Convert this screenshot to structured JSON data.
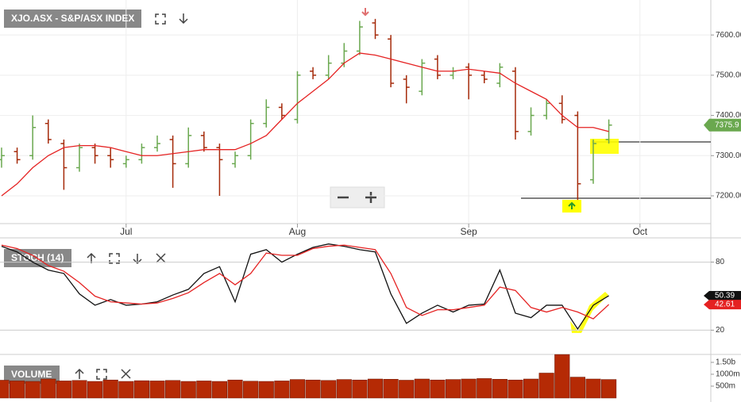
{
  "chart_data": [
    {
      "type": "ohlc",
      "title": "XJO.ASX - S&P/ASX INDEX",
      "x": [
        0,
        2,
        4,
        6,
        8,
        10,
        12,
        14,
        16,
        18,
        20,
        22,
        24,
        26,
        28,
        30,
        32,
        34,
        36,
        38,
        40,
        42,
        44,
        46,
        48,
        50,
        52,
        54,
        56,
        58,
        60,
        62,
        64,
        66,
        68,
        70,
        72,
        74,
        76,
        78
      ],
      "open": [
        7290,
        7310,
        7300,
        7380,
        7330,
        7270,
        7320,
        7300,
        7280,
        7290,
        7320,
        7340,
        7280,
        7350,
        7320,
        7280,
        7300,
        7380,
        7420,
        7390,
        7510,
        7500,
        7530,
        7560,
        7630,
        7590,
        7490,
        7460,
        7540,
        7500,
        7520,
        7500,
        7480,
        7510,
        7360,
        7400,
        7430,
        7400,
        7240,
        7340
      ],
      "high": [
        7320,
        7320,
        7400,
        7390,
        7340,
        7330,
        7330,
        7320,
        7300,
        7330,
        7350,
        7350,
        7370,
        7360,
        7330,
        7310,
        7390,
        7440,
        7430,
        7510,
        7520,
        7550,
        7580,
        7635,
        7640,
        7600,
        7500,
        7540,
        7550,
        7520,
        7530,
        7510,
        7530,
        7520,
        7420,
        7440,
        7450,
        7410,
        7340,
        7390
      ],
      "low": [
        7270,
        7280,
        7290,
        7330,
        7215,
        7260,
        7280,
        7270,
        7270,
        7280,
        7310,
        7220,
        7270,
        7310,
        7200,
        7270,
        7290,
        7370,
        7390,
        7380,
        7490,
        7490,
        7520,
        7550,
        7590,
        7470,
        7430,
        7450,
        7490,
        7490,
        7440,
        7480,
        7470,
        7340,
        7350,
        7390,
        7380,
        7190,
        7230,
        7330
      ],
      "close": [
        7300,
        7290,
        7370,
        7340,
        7270,
        7320,
        7300,
        7290,
        7290,
        7320,
        7330,
        7280,
        7350,
        7320,
        7290,
        7300,
        7380,
        7420,
        7400,
        7500,
        7500,
        7530,
        7560,
        7620,
        7600,
        7480,
        7470,
        7530,
        7500,
        7510,
        7500,
        7490,
        7520,
        7360,
        7400,
        7430,
        7390,
        7230,
        7330,
        7375.9
      ],
      "up_color": "#6aa84f",
      "down_color": "#a52a0a",
      "overlay": {
        "type": "line",
        "color": "#e52222",
        "values": [
          7200,
          7230,
          7270,
          7300,
          7320,
          7325,
          7325,
          7320,
          7310,
          7300,
          7300,
          7305,
          7310,
          7315,
          7315,
          7315,
          7330,
          7350,
          7390,
          7430,
          7460,
          7490,
          7530,
          7555,
          7550,
          7540,
          7530,
          7520,
          7510,
          7510,
          7515,
          7510,
          7505,
          7480,
          7460,
          7440,
          7400,
          7370,
          7370,
          7360
        ]
      },
      "xlim": [
        -0.2,
        91.1
      ],
      "xticks": [
        {
          "value": 16,
          "label": "Jul"
        },
        {
          "value": 38,
          "label": "Aug"
        },
        {
          "value": 60,
          "label": "Sep"
        },
        {
          "value": 82,
          "label": "Oct"
        }
      ],
      "ylim": [
        7131,
        7687
      ],
      "yticks": [
        {
          "value": 7200,
          "label": "7200.00"
        },
        {
          "value": 7300,
          "label": "7300.00"
        },
        {
          "value": 7400,
          "label": "7400.00"
        },
        {
          "value": 7500,
          "label": "7500.00"
        },
        {
          "value": 7600,
          "label": "7600.00"
        }
      ],
      "grid": true
    },
    {
      "type": "line",
      "title": "STOCH (14)",
      "series": [
        {
          "color": "#111111",
          "values": [
            94,
            89,
            80,
            73,
            70,
            52,
            42,
            47,
            42,
            43,
            45,
            51,
            56,
            70,
            76,
            45,
            87,
            91,
            80,
            87,
            93,
            96,
            94,
            91,
            89,
            52,
            26,
            35,
            42,
            36,
            42,
            43,
            73,
            35,
            31,
            42,
            42,
            21,
            42,
            50.39
          ]
        },
        {
          "color": "#e52222",
          "values": [
            95,
            92,
            86,
            77,
            72,
            62,
            50,
            45,
            44,
            43,
            44,
            48,
            53,
            62,
            70,
            60,
            70,
            88,
            86,
            86,
            92,
            94,
            95,
            93,
            91,
            70,
            40,
            33,
            38,
            38,
            40,
            42,
            58,
            55,
            40,
            36,
            40,
            36,
            30,
            42.61
          ]
        }
      ],
      "ylim": [
        0,
        100
      ],
      "yticks": [
        20,
        80
      ],
      "grid": true
    },
    {
      "type": "bar",
      "title": "VOLUME",
      "color": "#b52a05",
      "values": [
        750,
        720,
        700,
        800,
        720,
        740,
        700,
        760,
        700,
        730,
        720,
        740,
        700,
        720,
        700,
        760,
        710,
        700,
        720,
        780,
        760,
        740,
        780,
        760,
        800,
        790,
        750,
        800,
        760,
        780,
        800,
        820,
        790,
        760,
        800,
        1050,
        1830,
        880,
        800,
        780
      ],
      "ylim": [
        0,
        1833
      ],
      "yticks": [
        {
          "value": 500,
          "label": "500m"
        },
        {
          "value": 1000,
          "label": "1000m"
        },
        {
          "value": 1500,
          "label": "1.50b"
        }
      ]
    }
  ]
}
